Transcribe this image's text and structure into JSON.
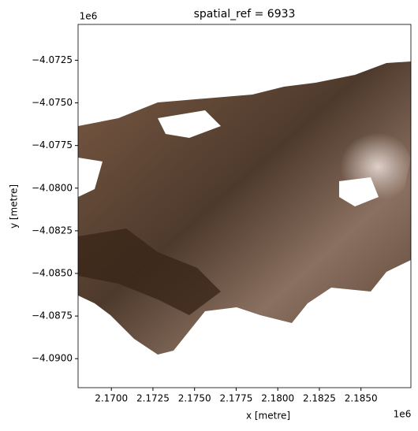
{
  "chart_data": {
    "type": "image",
    "title": "spatial_ref = 6933",
    "x_label": "x [metre]",
    "y_label": "y [metre]",
    "x_offset": "1e6",
    "y_offset": "1e6",
    "xlim": [
      2.168,
      2.188
    ],
    "ylim": [
      -4.0917,
      -4.0704
    ],
    "xticks": [
      {
        "value": 2.17,
        "label": "2.1700"
      },
      {
        "value": 2.1725,
        "label": "2.1725"
      },
      {
        "value": 2.175,
        "label": "2.1750"
      },
      {
        "value": 2.1775,
        "label": "2.1775"
      },
      {
        "value": 2.18,
        "label": "2.1800"
      },
      {
        "value": 2.1825,
        "label": "2.1825"
      },
      {
        "value": 2.185,
        "label": "2.1850"
      }
    ],
    "yticks": [
      {
        "value": -4.0725,
        "label": "−4.0725"
      },
      {
        "value": -4.075,
        "label": "−4.0750"
      },
      {
        "value": -4.0775,
        "label": "−4.0775"
      },
      {
        "value": -4.08,
        "label": "−4.0800"
      },
      {
        "value": -4.0825,
        "label": "−4.0825"
      },
      {
        "value": -4.085,
        "label": "−4.0850"
      },
      {
        "value": -4.0875,
        "label": "−4.0875"
      },
      {
        "value": -4.09,
        "label": "−4.0900"
      }
    ]
  }
}
